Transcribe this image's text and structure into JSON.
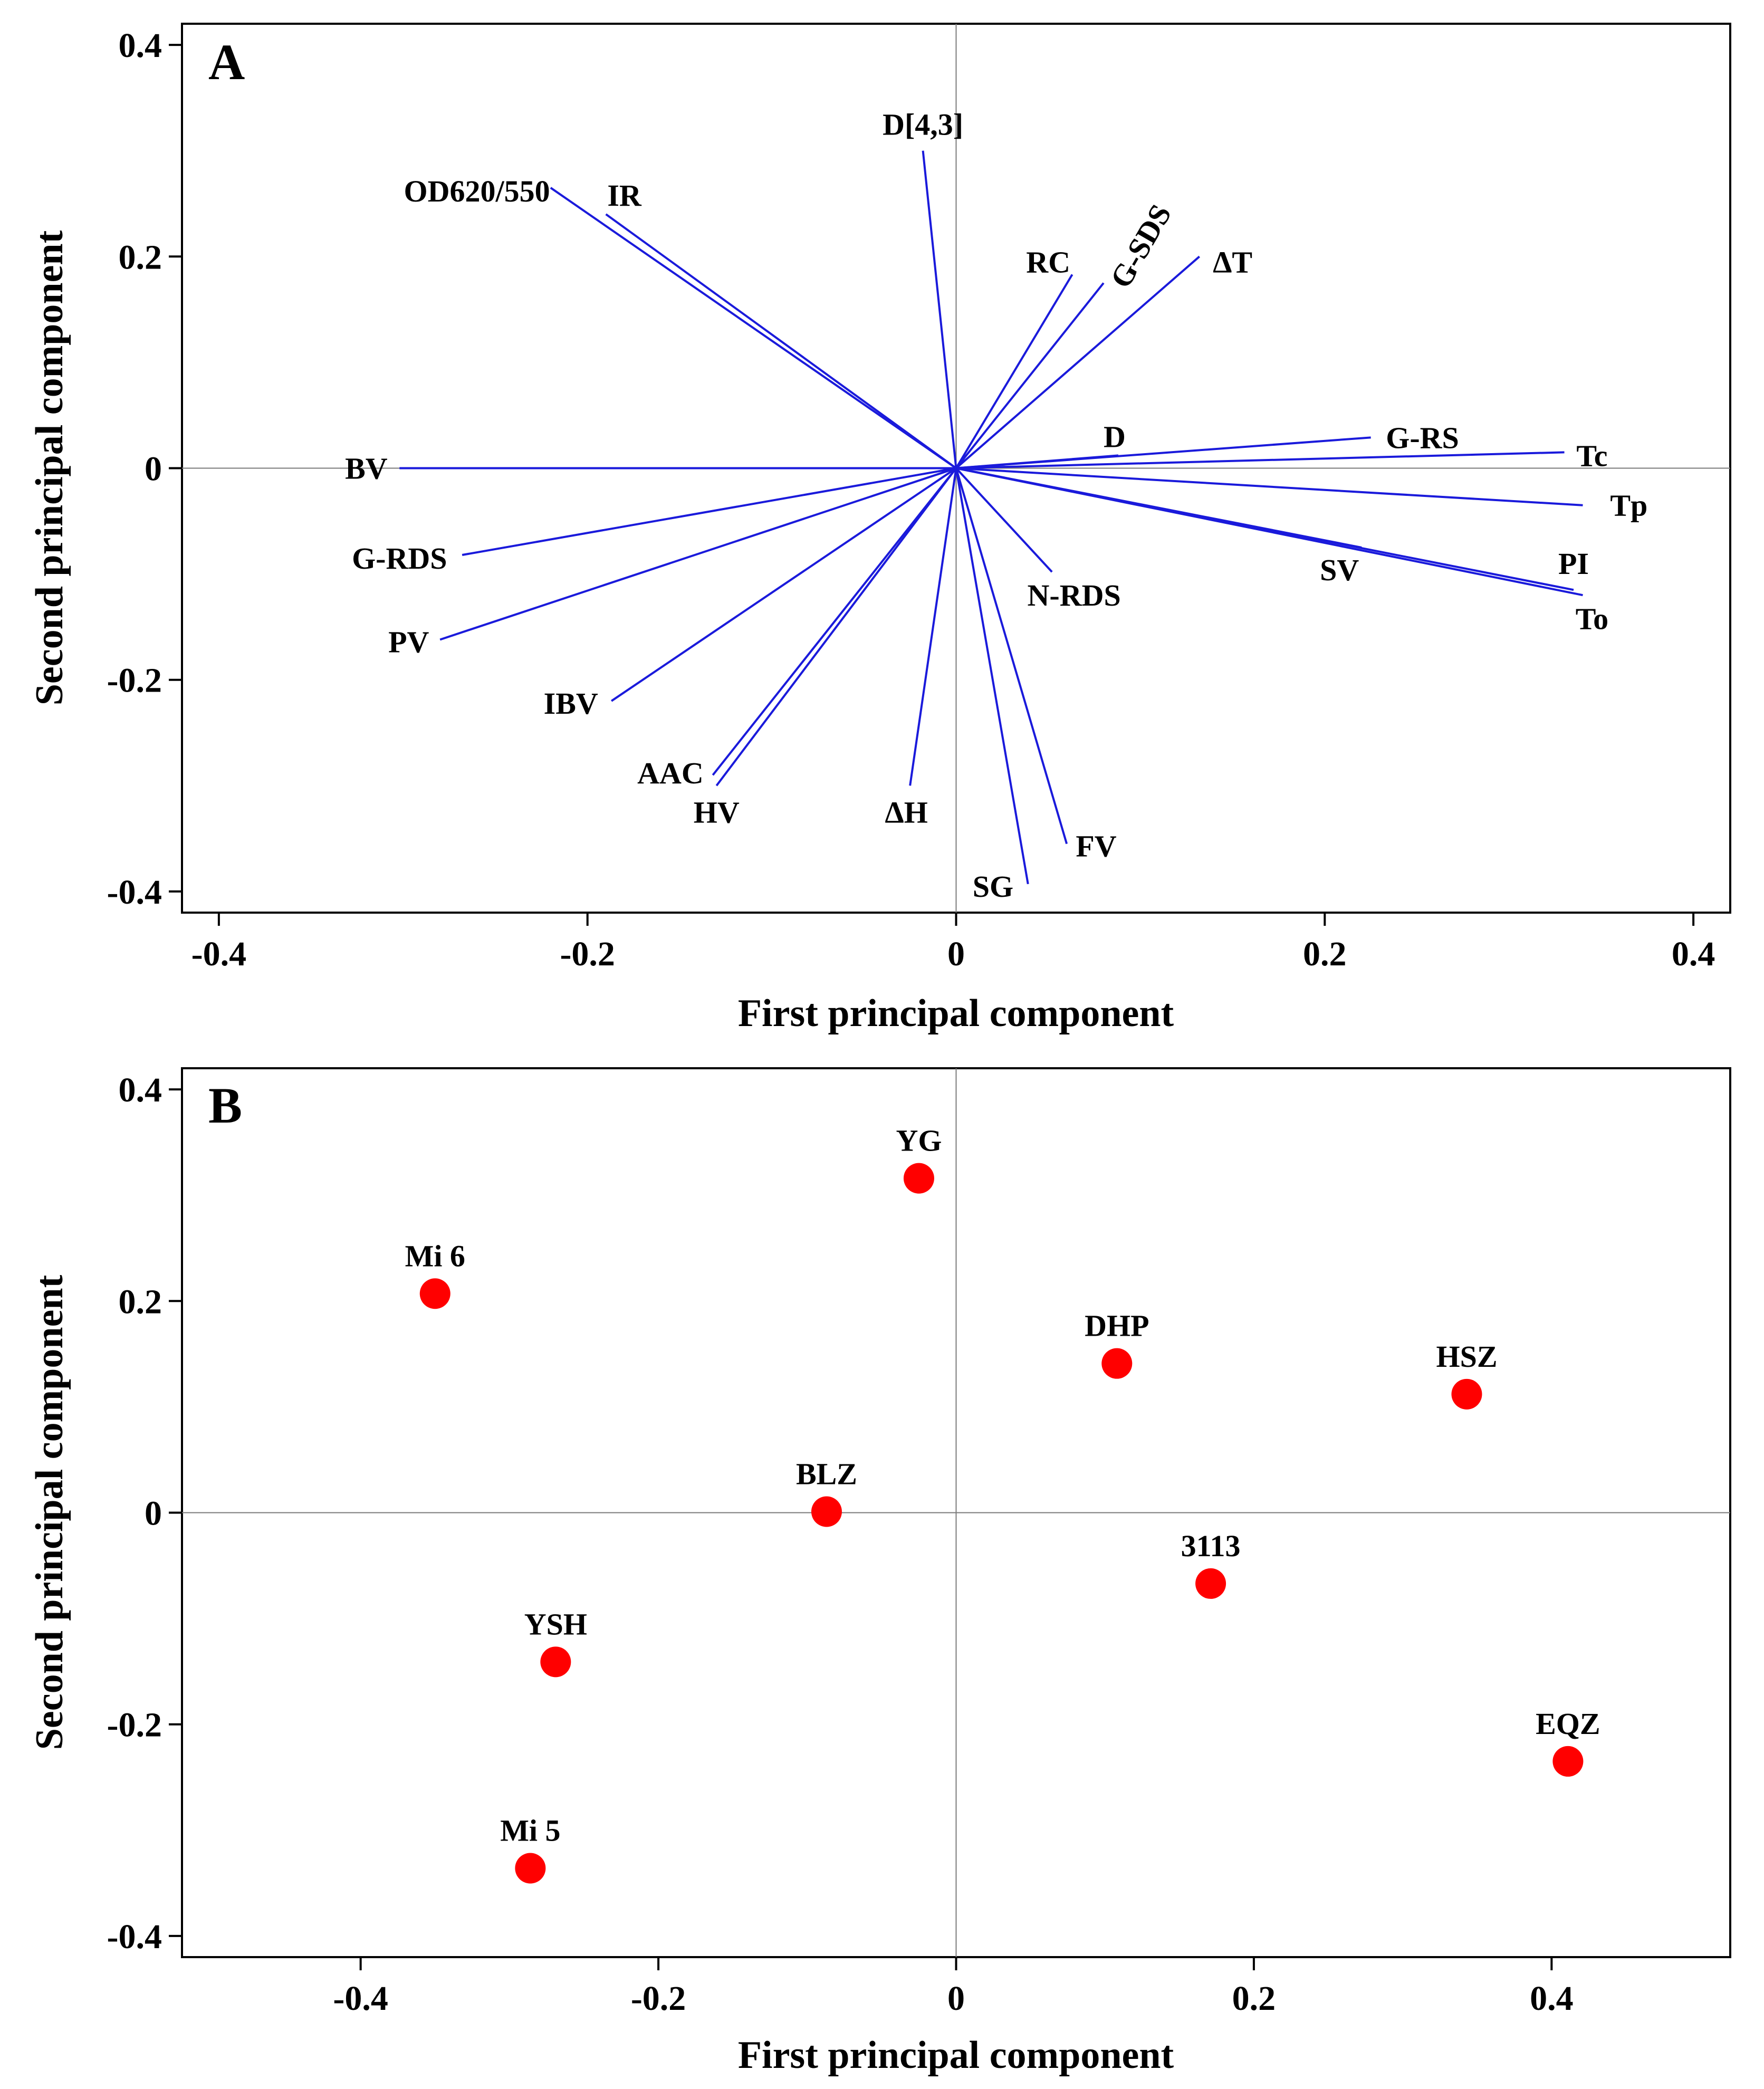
{
  "chart_data": [
    {
      "panel": "A",
      "type": "biplot-loadings",
      "xlabel": "First principal component",
      "ylabel": "Second principal component",
      "xlim": [
        -0.42,
        0.42
      ],
      "ylim": [
        -0.42,
        0.42
      ],
      "xticks": [
        -0.4,
        -0.2,
        0,
        0.2,
        0.4
      ],
      "yticks": [
        -0.4,
        -0.2,
        0,
        0.2,
        0.4
      ],
      "xtick_labels": [
        "-0.4",
        "-0.2",
        "0",
        "0.2",
        "0.4"
      ],
      "ytick_labels": [
        "-0.4",
        "-0.2",
        "0",
        "0.2",
        "0.4"
      ],
      "color": "#1a1adb",
      "vectors": [
        {
          "label": "D[4,3]",
          "x": -0.018,
          "y": 0.3,
          "lx": -0.018,
          "ly": 0.325
        },
        {
          "label": "OD620/550",
          "x": -0.22,
          "y": 0.265,
          "lx": -0.26,
          "ly": 0.262
        },
        {
          "label": "IR",
          "x": -0.19,
          "y": 0.24,
          "lx": -0.18,
          "ly": 0.258
        },
        {
          "label": "RC",
          "x": 0.063,
          "y": 0.183,
          "lx": 0.05,
          "ly": 0.195
        },
        {
          "label": "G-SDS",
          "x": 0.08,
          "y": 0.175,
          "lx": 0.1,
          "ly": 0.21,
          "rotate": -60
        },
        {
          "label": "ΔT",
          "x": 0.132,
          "y": 0.2,
          "lx": 0.15,
          "ly": 0.195
        },
        {
          "label": "D",
          "x": 0.088,
          "y": 0.012,
          "lx": 0.086,
          "ly": 0.03
        },
        {
          "label": "G-RS",
          "x": 0.225,
          "y": 0.029,
          "lx": 0.253,
          "ly": 0.029
        },
        {
          "label": "Tc",
          "x": 0.33,
          "y": 0.015,
          "lx": 0.345,
          "ly": 0.012
        },
        {
          "label": "Tp",
          "x": 0.34,
          "y": -0.035,
          "lx": 0.365,
          "ly": -0.035
        },
        {
          "label": "PI",
          "x": 0.335,
          "y": -0.115,
          "lx": 0.335,
          "ly": -0.09
        },
        {
          "label": "To",
          "x": 0.34,
          "y": -0.12,
          "lx": 0.345,
          "ly": -0.142
        },
        {
          "label": "SV",
          "x": 0.22,
          "y": -0.075,
          "lx": 0.208,
          "ly": -0.096
        },
        {
          "label": "N-RDS",
          "x": 0.052,
          "y": -0.098,
          "lx": 0.064,
          "ly": -0.12
        },
        {
          "label": "FV",
          "x": 0.06,
          "y": -0.355,
          "lx": 0.076,
          "ly": -0.357
        },
        {
          "label": "SG",
          "x": 0.039,
          "y": -0.393,
          "lx": 0.02,
          "ly": -0.395
        },
        {
          "label": "ΔH",
          "x": -0.025,
          "y": -0.3,
          "lx": -0.027,
          "ly": -0.325
        },
        {
          "label": "HV",
          "x": -0.13,
          "y": -0.3,
          "lx": -0.13,
          "ly": -0.325
        },
        {
          "label": "AAC",
          "x": -0.132,
          "y": -0.29,
          "lx": -0.155,
          "ly": -0.288
        },
        {
          "label": "IBV",
          "x": -0.187,
          "y": -0.22,
          "lx": -0.209,
          "ly": -0.222
        },
        {
          "label": "PV",
          "x": -0.28,
          "y": -0.162,
          "lx": -0.297,
          "ly": -0.164
        },
        {
          "label": "G-RDS",
          "x": -0.268,
          "y": -0.082,
          "lx": -0.302,
          "ly": -0.085
        },
        {
          "label": "BV",
          "x": -0.302,
          "y": 0.0,
          "lx": -0.32,
          "ly": 0.0
        }
      ]
    },
    {
      "panel": "B",
      "type": "scatter",
      "xlabel": "First principal component",
      "ylabel": "Second principal component",
      "xlim": [
        -0.52,
        0.52
      ],
      "ylim": [
        -0.42,
        0.42
      ],
      "xticks": [
        -0.4,
        -0.2,
        0,
        0.2,
        0.4
      ],
      "yticks": [
        -0.4,
        -0.2,
        0,
        0.2,
        0.4
      ],
      "xtick_labels": [
        "-0.4",
        "-0.2",
        "0",
        "0.2",
        "0.4"
      ],
      "ytick_labels": [
        "-0.4",
        "-0.2",
        "0",
        "0.2",
        "0.4"
      ],
      "color": "#ff0000",
      "points": [
        {
          "label": "YG",
          "x": -0.025,
          "y": 0.316
        },
        {
          "label": "Mi 6",
          "x": -0.35,
          "y": 0.207
        },
        {
          "label": "DHP",
          "x": 0.108,
          "y": 0.141
        },
        {
          "label": "HSZ",
          "x": 0.343,
          "y": 0.112
        },
        {
          "label": "BLZ",
          "x": -0.087,
          "y": 0.001
        },
        {
          "label": "3113",
          "x": 0.171,
          "y": -0.067
        },
        {
          "label": "YSH",
          "x": -0.269,
          "y": -0.141
        },
        {
          "label": "EQZ",
          "x": 0.411,
          "y": -0.235
        },
        {
          "label": "Mi 5",
          "x": -0.286,
          "y": -0.336
        }
      ]
    }
  ]
}
